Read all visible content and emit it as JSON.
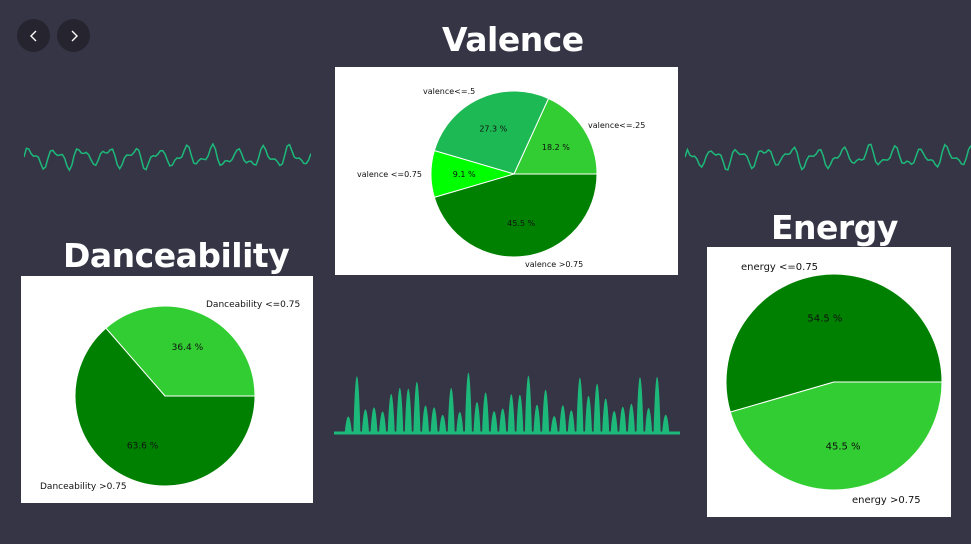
{
  "nav": {
    "prev_icon": "chevron-left-icon",
    "next_icon": "chevron-right-icon"
  },
  "headings": {
    "valence": "Valence",
    "danceability": "Danceability",
    "energy": "Energy"
  },
  "colors": {
    "background": "#363545",
    "accent": "#1db97a",
    "dark_green": "#008000",
    "lime_green": "#32cd32",
    "medium_green": "#1db954",
    "bright_green": "#00ff00"
  },
  "chart_data": [
    {
      "id": "valence",
      "type": "pie",
      "title": "",
      "slices": [
        {
          "label": "valence<=.25",
          "value": 18.2,
          "pct_label": "18.2 %",
          "color": "#32cd32"
        },
        {
          "label": "valence<=.5",
          "value": 27.3,
          "pct_label": "27.3 %",
          "color": "#1db954"
        },
        {
          "label": "valence <=0.75",
          "value": 9.1,
          "pct_label": "9.1 %",
          "color": "#00ff00"
        },
        {
          "label": "valence >0.75",
          "value": 45.5,
          "pct_label": "45.5 %",
          "color": "#008000"
        }
      ]
    },
    {
      "id": "danceability",
      "type": "pie",
      "title": "",
      "slices": [
        {
          "label": "Danceability <=0.75",
          "value": 36.4,
          "pct_label": "36.4 %",
          "color": "#32cd32"
        },
        {
          "label": "Danceability >0.75",
          "value": 63.6,
          "pct_label": "63.6 %",
          "color": "#008000"
        }
      ]
    },
    {
      "id": "energy",
      "type": "pie",
      "title": "",
      "slices": [
        {
          "label": "energy <=0.75",
          "value": 54.5,
          "pct_label": "54.5 %",
          "color": "#008000"
        },
        {
          "label": "energy >0.75",
          "value": 45.5,
          "pct_label": "45.5 %",
          "color": "#32cd32"
        }
      ]
    }
  ]
}
